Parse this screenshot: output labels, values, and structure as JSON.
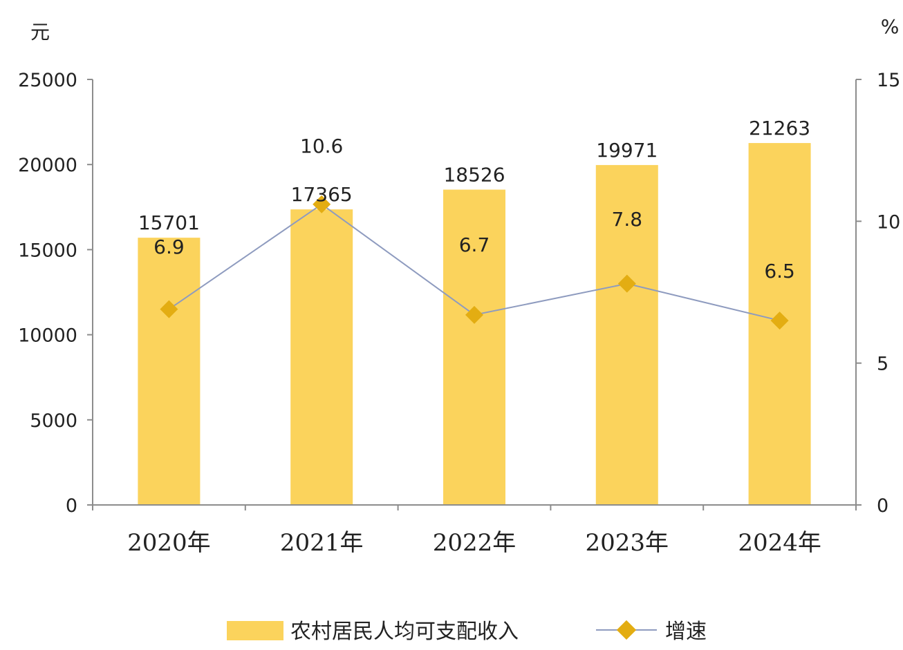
{
  "chart_data": {
    "type": "bar",
    "categories": [
      "2020年",
      "2021年",
      "2022年",
      "2023年",
      "2024年"
    ],
    "series": [
      {
        "name": "农村居民人均可支配收入",
        "type": "bar",
        "axis": "left",
        "values": [
          15701,
          17365,
          18526,
          19971,
          21263
        ],
        "labels": [
          "15701",
          "17365",
          "18526",
          "19971",
          "21263"
        ]
      },
      {
        "name": "增速",
        "type": "line",
        "axis": "right",
        "values": [
          6.9,
          10.6,
          6.7,
          7.8,
          6.5
        ],
        "labels": [
          "6.9",
          "10.6",
          "6.7",
          "7.8",
          "6.5"
        ]
      }
    ],
    "left_axis": {
      "unit": "元",
      "ylim": [
        0,
        25000
      ],
      "ticks": [
        "0",
        "5000",
        "10000",
        "15000",
        "20000",
        "25000"
      ]
    },
    "right_axis": {
      "unit": "%",
      "ylim": [
        0,
        15
      ],
      "ticks": [
        "0",
        "5",
        "10",
        "15"
      ]
    },
    "legend_position": "bottom",
    "grid": false,
    "colors": {
      "bar": "#fbd35c",
      "line": "#8e9bbf",
      "marker": "#e3ad12",
      "axis": "#8c8c8c"
    }
  }
}
